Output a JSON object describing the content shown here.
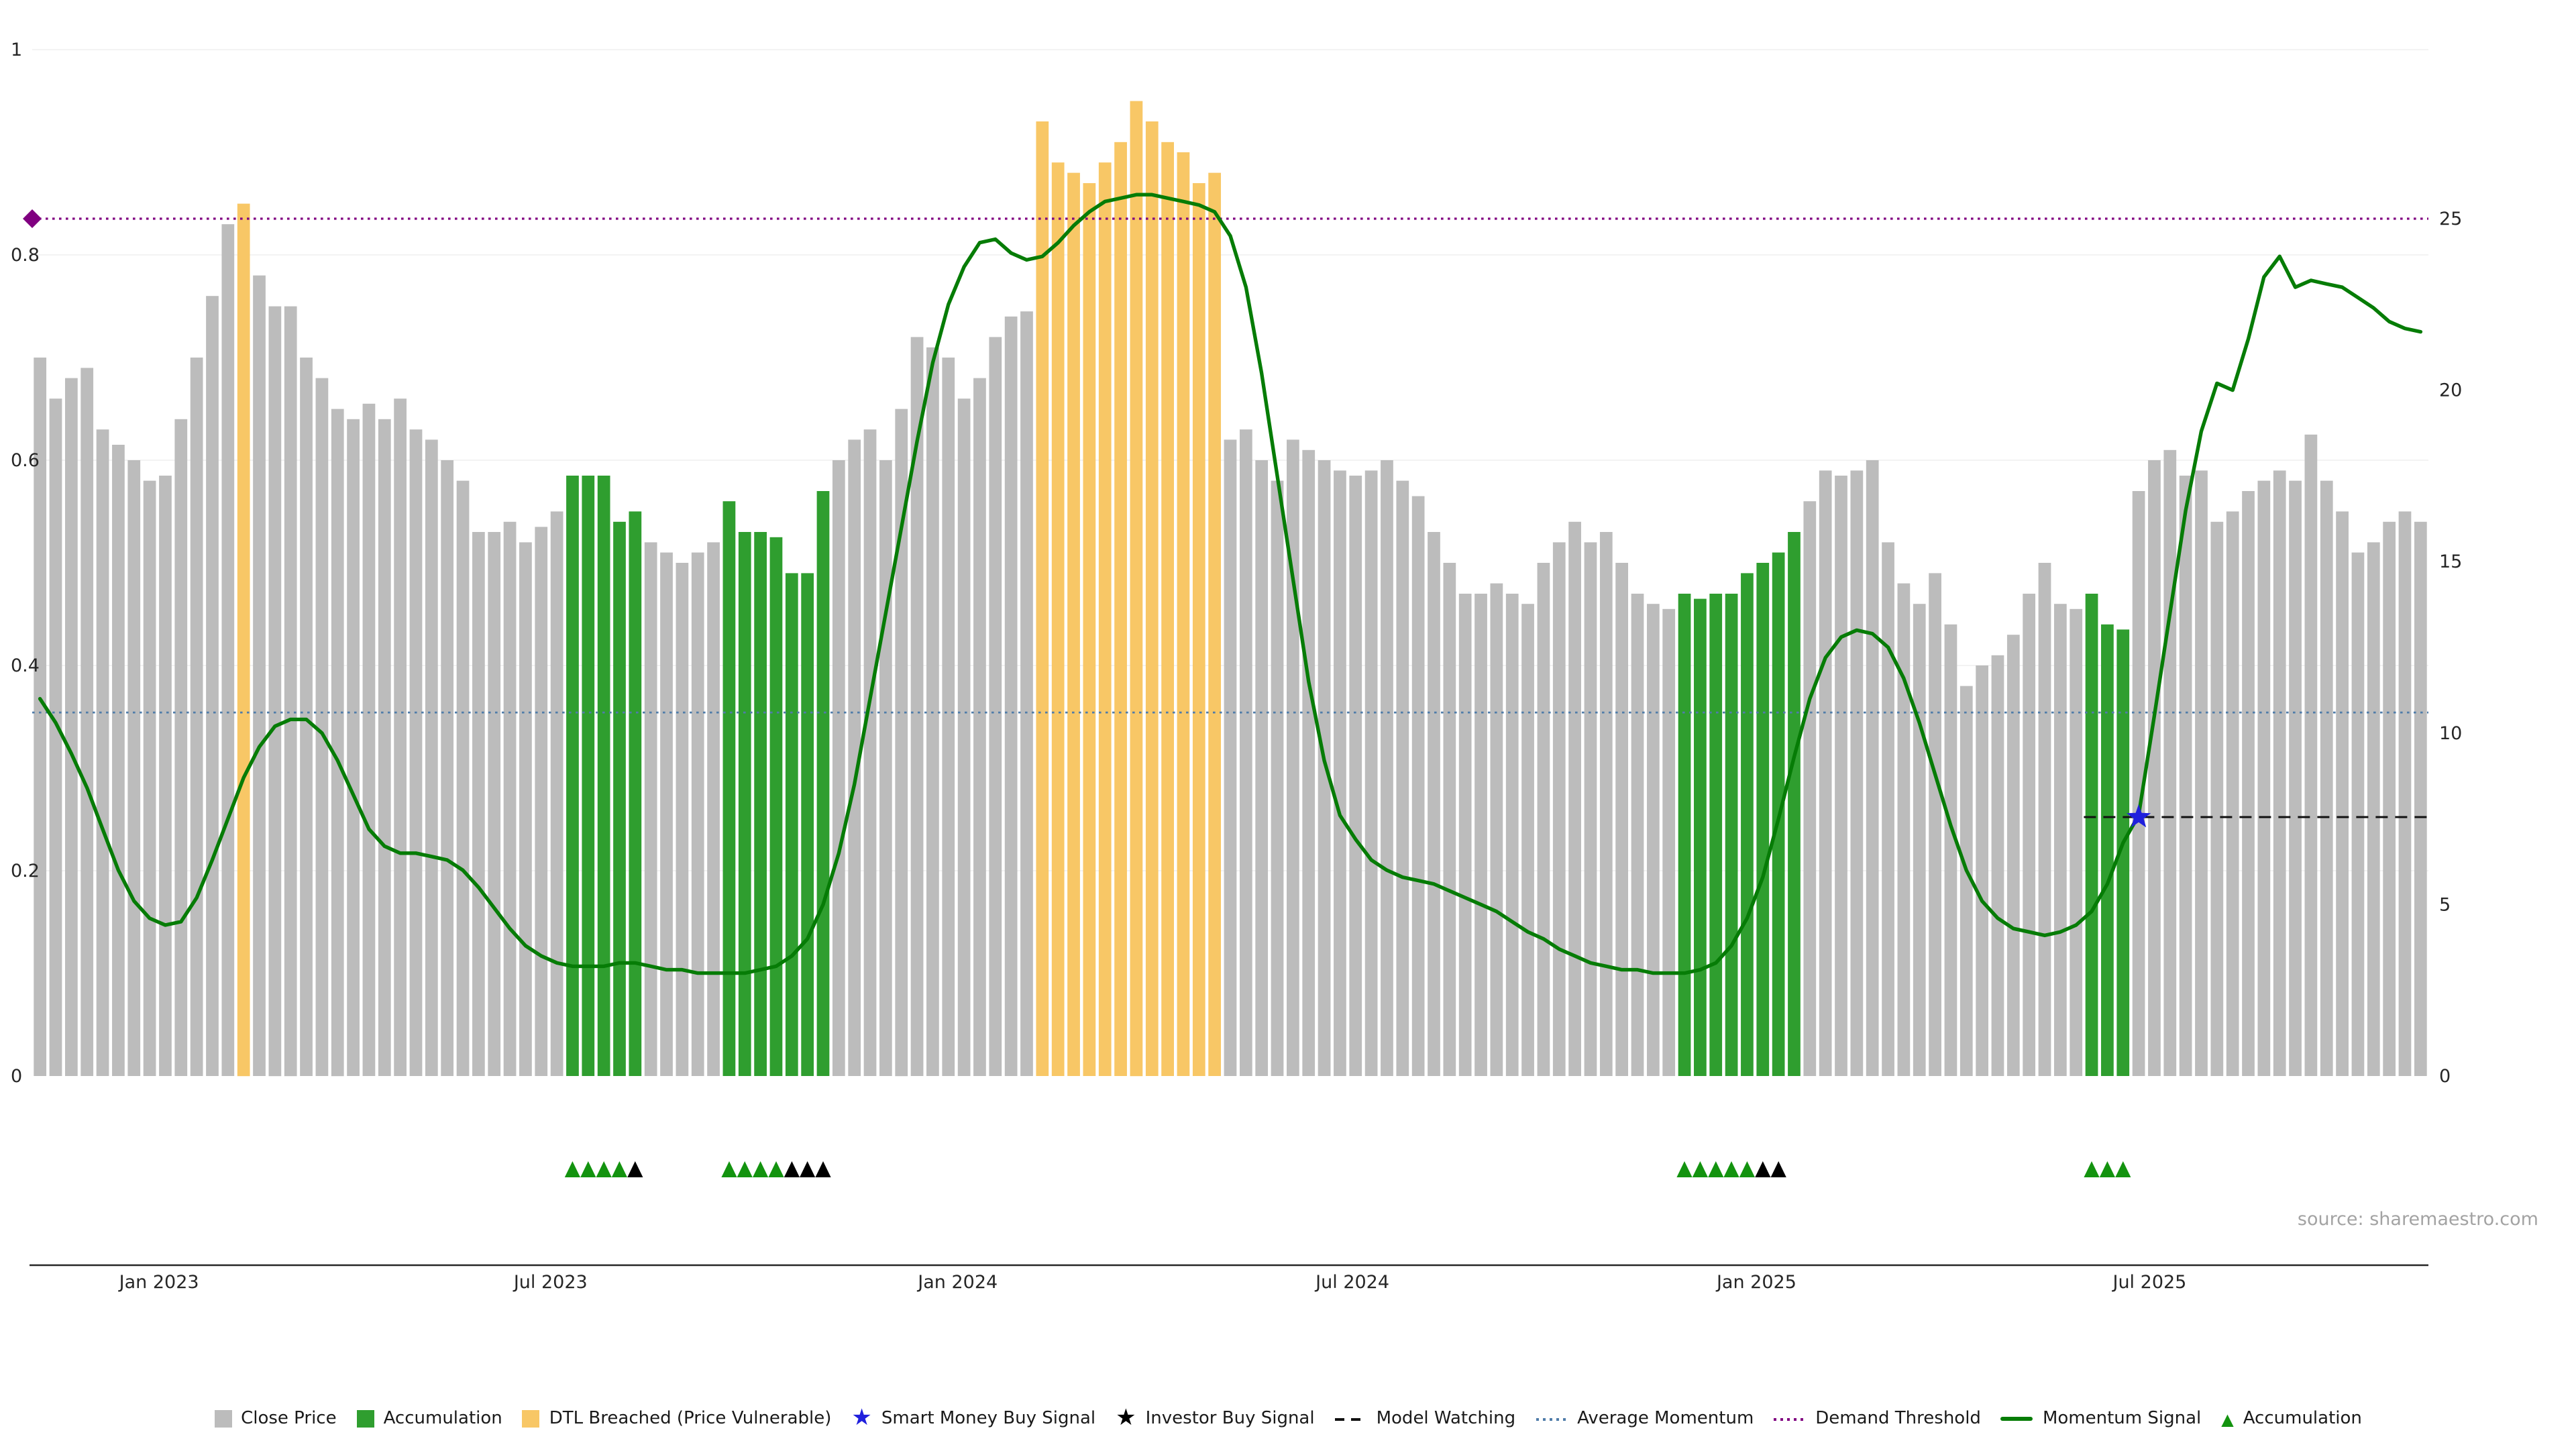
{
  "meta": {
    "source": "source: sharemaestro.com"
  },
  "colors": {
    "close_price": "#bcbcbc",
    "accumulation": "#2f9e2f",
    "dtl_breached": "#f8c766",
    "momentum_signal": "#067c06",
    "average_momentum": "#4f7ca9",
    "demand_threshold": "#800080",
    "model_watching": "#111111",
    "smart_money_star": "#2020dd",
    "investor_star": "#000000",
    "accumulation_marker": "#13930f",
    "grid": "#f3f3f3",
    "axis": "#262626"
  },
  "chart_data": {
    "type": "bar+line",
    "title": "",
    "left_axis": {
      "range": [
        0,
        1.01
      ],
      "ticks": [
        0,
        0.2,
        0.4,
        0.6,
        0.8,
        1
      ],
      "tick_labels": [
        "0",
        "0.2",
        "0.4",
        "0.6",
        "0.8",
        "1"
      ]
    },
    "right_axis": {
      "range": [
        0,
        30.2
      ],
      "ticks": [
        0,
        5,
        10,
        15,
        20,
        25
      ],
      "tick_labels": [
        "0",
        "5",
        "10",
        "15",
        "20",
        "25"
      ]
    },
    "x_ticks": [
      {
        "label": "Jan 2023",
        "i": 7.6
      },
      {
        "label": "Jul 2023",
        "i": 32.6
      },
      {
        "label": "Jan 2024",
        "i": 58.6
      },
      {
        "label": "Jul 2024",
        "i": 83.8
      },
      {
        "label": "Jan 2025",
        "i": 109.6
      },
      {
        "label": "Jul 2025",
        "i": 134.7
      }
    ],
    "bars": {
      "name": "Close Price (weekly, normalized)",
      "axis": "left",
      "state_key": {
        "c": "close_price",
        "a": "accumulation",
        "d": "dtl_breached"
      },
      "states": "cccccccccccccdccccccccccccccccccccaaaaacccccaaaaaaacccccccccccccddddddddddddcccccccccccccccccccccccccccccaaaaaaaaccccccccccccccccccaaaccccccccccccccccccc",
      "values": [
        0.7,
        0.66,
        0.68,
        0.69,
        0.63,
        0.615,
        0.6,
        0.58,
        0.585,
        0.64,
        0.7,
        0.76,
        0.83,
        0.85,
        0.78,
        0.75,
        0.75,
        0.7,
        0.68,
        0.65,
        0.64,
        0.655,
        0.64,
        0.66,
        0.63,
        0.62,
        0.6,
        0.58,
        0.53,
        0.53,
        0.54,
        0.52,
        0.535,
        0.55,
        0.585,
        0.585,
        0.585,
        0.54,
        0.55,
        0.52,
        0.51,
        0.5,
        0.51,
        0.52,
        0.56,
        0.53,
        0.53,
        0.525,
        0.49,
        0.49,
        0.57,
        0.6,
        0.62,
        0.63,
        0.6,
        0.65,
        0.72,
        0.71,
        0.7,
        0.66,
        0.68,
        0.72,
        0.74,
        0.745,
        0.93,
        0.89,
        0.88,
        0.87,
        0.89,
        0.91,
        0.95,
        0.93,
        0.91,
        0.9,
        0.87,
        0.88,
        0.62,
        0.63,
        0.6,
        0.58,
        0.62,
        0.61,
        0.6,
        0.59,
        0.585,
        0.59,
        0.6,
        0.58,
        0.565,
        0.53,
        0.5,
        0.47,
        0.47,
        0.48,
        0.47,
        0.46,
        0.5,
        0.52,
        0.54,
        0.52,
        0.53,
        0.5,
        0.47,
        0.46,
        0.455,
        0.47,
        0.465,
        0.47,
        0.47,
        0.49,
        0.5,
        0.51,
        0.53,
        0.56,
        0.59,
        0.585,
        0.59,
        0.6,
        0.52,
        0.48,
        0.46,
        0.49,
        0.44,
        0.38,
        0.4,
        0.41,
        0.43,
        0.47,
        0.5,
        0.46,
        0.455,
        0.47,
        0.44,
        0.435,
        0.57,
        0.6,
        0.61,
        0.585,
        0.59,
        0.54,
        0.55,
        0.57,
        0.58,
        0.59,
        0.58,
        0.625,
        0.58,
        0.55,
        0.51,
        0.52,
        0.54,
        0.55,
        0.54
      ]
    },
    "momentum": {
      "name": "Momentum Signal",
      "axis": "right",
      "values": [
        11.0,
        10.3,
        9.4,
        8.4,
        7.2,
        6.0,
        5.1,
        4.6,
        4.4,
        4.5,
        5.2,
        6.3,
        7.5,
        8.7,
        9.6,
        10.2,
        10.4,
        10.4,
        10.0,
        9.2,
        8.2,
        7.2,
        6.7,
        6.5,
        6.5,
        6.4,
        6.3,
        6.0,
        5.5,
        4.9,
        4.3,
        3.8,
        3.5,
        3.3,
        3.2,
        3.2,
        3.2,
        3.3,
        3.3,
        3.2,
        3.1,
        3.1,
        3.0,
        3.0,
        3.0,
        3.0,
        3.1,
        3.2,
        3.5,
        4.0,
        5.0,
        6.5,
        8.5,
        11.0,
        13.5,
        16.0,
        18.5,
        20.8,
        22.5,
        23.6,
        24.3,
        24.4,
        24.0,
        23.8,
        23.9,
        24.3,
        24.8,
        25.2,
        25.5,
        25.6,
        25.7,
        25.7,
        25.6,
        25.5,
        25.4,
        25.2,
        24.5,
        23.0,
        20.5,
        17.5,
        14.5,
        11.5,
        9.2,
        7.6,
        6.9,
        6.3,
        6.0,
        5.8,
        5.7,
        5.6,
        5.4,
        5.2,
        5.0,
        4.8,
        4.5,
        4.2,
        4.0,
        3.7,
        3.5,
        3.3,
        3.2,
        3.1,
        3.1,
        3.0,
        3.0,
        3.0,
        3.1,
        3.3,
        3.8,
        4.6,
        5.8,
        7.5,
        9.3,
        11.0,
        12.2,
        12.8,
        13.0,
        12.9,
        12.5,
        11.6,
        10.3,
        8.8,
        7.3,
        6.0,
        5.1,
        4.6,
        4.3,
        4.2,
        4.1,
        4.2,
        4.4,
        4.8,
        5.6,
        6.8,
        7.6,
        10.5,
        13.5,
        16.5,
        18.8,
        20.2,
        20.0,
        21.5,
        23.3,
        23.9,
        23.0,
        23.2,
        23.1,
        23.0,
        22.7,
        22.4,
        22.0,
        21.8,
        21.7
      ]
    },
    "reference_lines": {
      "demand_threshold": {
        "label": "Demand Threshold",
        "axis": "right",
        "value": 25,
        "style": "dotted"
      },
      "average_momentum": {
        "label": "Average Momentum",
        "axis": "right",
        "value": 10.6,
        "style": "dotted"
      },
      "model_watching": {
        "label": "Model Watching",
        "axis": "right",
        "value": 7.55,
        "style": "dashed",
        "start_index": 130.5
      }
    },
    "signals": {
      "smart_money_buy": [
        {
          "index": 134,
          "value": 7.55
        }
      ],
      "investor_buy": []
    },
    "accumulation_markers": {
      "green_indices": [
        34,
        35,
        36,
        37,
        44,
        45,
        46,
        47,
        105,
        106,
        107,
        108,
        109,
        131,
        132,
        133
      ],
      "black_indices": [
        38,
        48,
        49,
        50,
        110,
        111
      ]
    }
  },
  "legend": {
    "items": [
      {
        "label": "Close Price",
        "swatch": "square",
        "color": "#bcbcbc"
      },
      {
        "label": "Accumulation",
        "swatch": "square",
        "color": "#2f9e2f"
      },
      {
        "label": "DTL Breached (Price Vulnerable)",
        "swatch": "square",
        "color": "#f8c766"
      },
      {
        "label": "Smart Money Buy Signal",
        "swatch": "star",
        "color": "#2020dd"
      },
      {
        "label": "Investor Buy Signal",
        "swatch": "star",
        "color": "#000000"
      },
      {
        "label": "Model Watching",
        "swatch": "dash",
        "color": "#111111"
      },
      {
        "label": "Average Momentum",
        "swatch": "dot",
        "color": "#4f7ca9"
      },
      {
        "label": "Demand Threshold",
        "swatch": "dot",
        "color": "#800080"
      },
      {
        "label": "Momentum Signal",
        "swatch": "line",
        "color": "#067c06"
      },
      {
        "label": "Accumulation",
        "swatch": "triangle",
        "color": "#13930f"
      }
    ]
  }
}
